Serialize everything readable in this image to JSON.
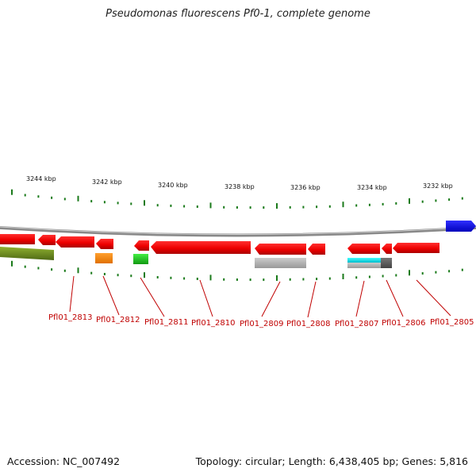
{
  "title": "Pseudomonas fluorescens Pf0-1, complete genome",
  "accession": "Accession: NC_007492",
  "genome_info": "Topology: circular; Length: 6,438,405 bp; Genes: 5,816",
  "kbp_labels": [
    "3244 kbp",
    "3242 kbp",
    "3240 kbp",
    "3238 kbp",
    "3236 kbp",
    "3234 kbp",
    "3232 kbp"
  ],
  "gene_labels": [
    "Pfl01_2813",
    "Pfl01_2812",
    "Pfl01_2811",
    "Pfl01_2810",
    "Pfl01_2809",
    "Pfl01_2808",
    "Pfl01_2807",
    "Pfl01_2806",
    "Pfl01_2805"
  ],
  "colors": {
    "gene_main": "#ff0000",
    "gene_label": "#c00000",
    "backbone": "#888888",
    "ticks": "#1a7a1a",
    "blue_feature": "#0000ff",
    "olive_feature": "#6b8e23",
    "orange_feature": "#ff8c00",
    "green_feature": "#22cc22",
    "gray_feature": "#bbbbbb",
    "cyan_feature": "#00e5ee",
    "dark_feature": "#666666"
  }
}
